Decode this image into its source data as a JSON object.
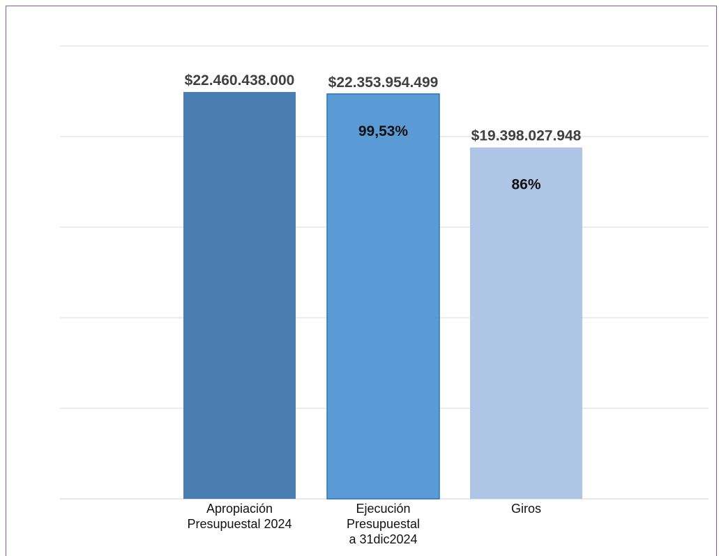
{
  "chart_data": {
    "type": "bar",
    "title": "",
    "xlabel": "",
    "ylabel": "",
    "grid": true,
    "ylim": [
      0,
      25000000000
    ],
    "categories": [
      [
        "Apropiación",
        "Presupuestal 2024"
      ],
      [
        "Ejecución",
        "Presupuestal",
        "a 31dic2024"
      ],
      [
        "Giros"
      ]
    ],
    "values": [
      22460438000,
      22353954499,
      19398027948
    ],
    "value_labels": [
      "$22.460.438.000",
      "$22.353.954.499",
      "$19.398.027.948"
    ],
    "percent_labels": [
      "",
      "99,53%",
      "86%"
    ],
    "colors": [
      "#4a7eb0",
      "#5b9bd5",
      "#aec5e6"
    ],
    "bar_outline": [
      "",
      "#2e75b6",
      ""
    ]
  }
}
